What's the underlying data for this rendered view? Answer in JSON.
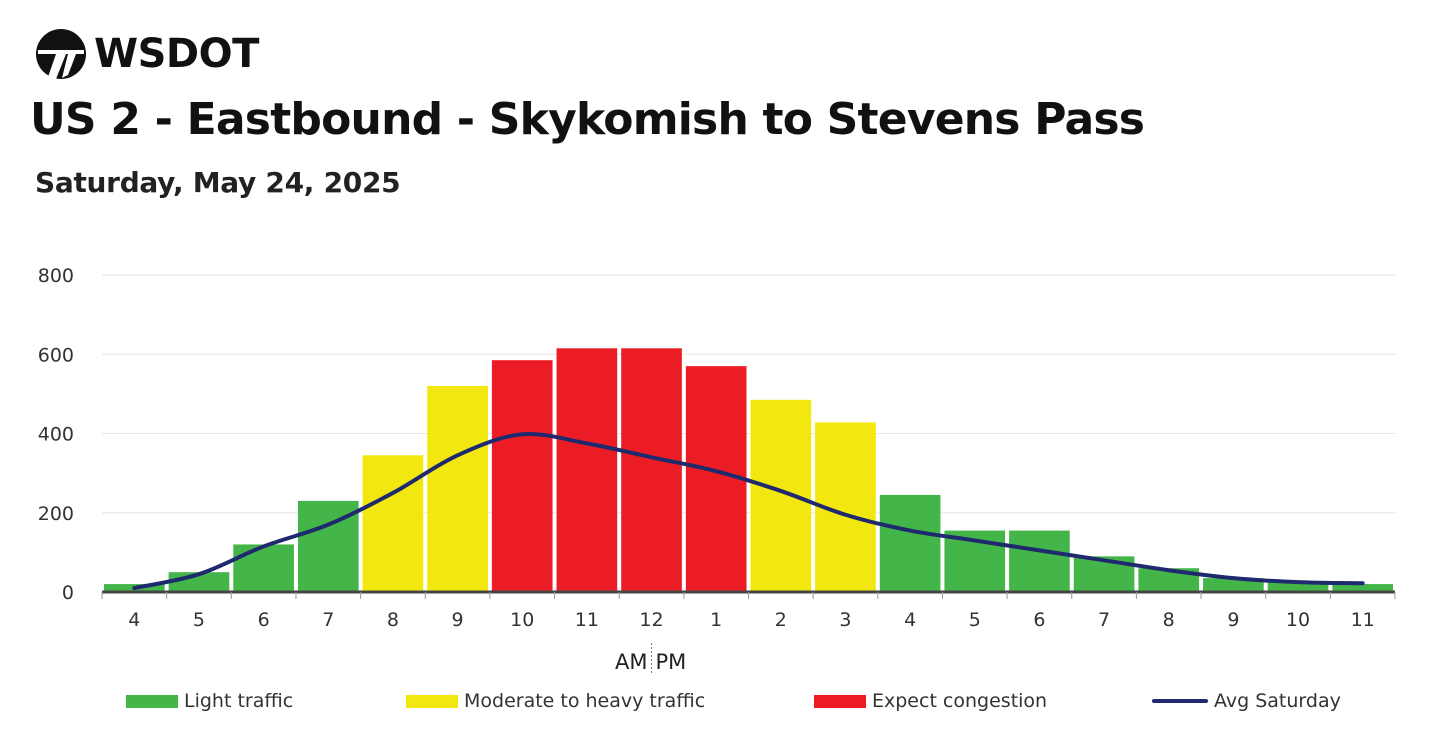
{
  "brand": {
    "logo_text": "WSDOT"
  },
  "header": {
    "title": "US 2 - Eastbound - Skykomish to Stevens Pass",
    "subtitle": "Saturday, May 24, 2025"
  },
  "colors": {
    "light": "#44b649",
    "moderate": "#f2e70f",
    "congestion": "#ec1c24",
    "avg_line": "#1f2a6e",
    "grid": "#e6e6e6",
    "axis": "#444444"
  },
  "legend": {
    "light": "Light traffic",
    "moderate": "Moderate to heavy traffic",
    "congestion": "Expect congestion",
    "avg": "Avg Saturday"
  },
  "chart_data": {
    "type": "bar",
    "categories": [
      "4",
      "5",
      "6",
      "7",
      "8",
      "9",
      "10",
      "11",
      "12",
      "1",
      "2",
      "3",
      "4",
      "5",
      "6",
      "7",
      "8",
      "9",
      "10",
      "11"
    ],
    "values": [
      20,
      50,
      120,
      230,
      345,
      520,
      585,
      615,
      615,
      570,
      485,
      428,
      245,
      155,
      155,
      90,
      60,
      35,
      25,
      20
    ],
    "levels": [
      "light",
      "light",
      "light",
      "light",
      "moderate",
      "moderate",
      "congestion",
      "congestion",
      "congestion",
      "congestion",
      "moderate",
      "moderate",
      "light",
      "light",
      "light",
      "light",
      "light",
      "light",
      "light",
      "light"
    ],
    "series": [
      {
        "name": "Avg Saturday",
        "type": "line",
        "values": [
          10,
          45,
          115,
          170,
          250,
          345,
          398,
          375,
          340,
          305,
          255,
          195,
          155,
          130,
          105,
          80,
          55,
          35,
          25,
          22
        ]
      }
    ],
    "yticks": [
      0,
      200,
      400,
      600,
      800
    ],
    "ylim": [
      0,
      800
    ],
    "am_pm_label": {
      "am": "AM",
      "pm": "PM"
    },
    "grid": true,
    "legend_position": "bottom"
  }
}
